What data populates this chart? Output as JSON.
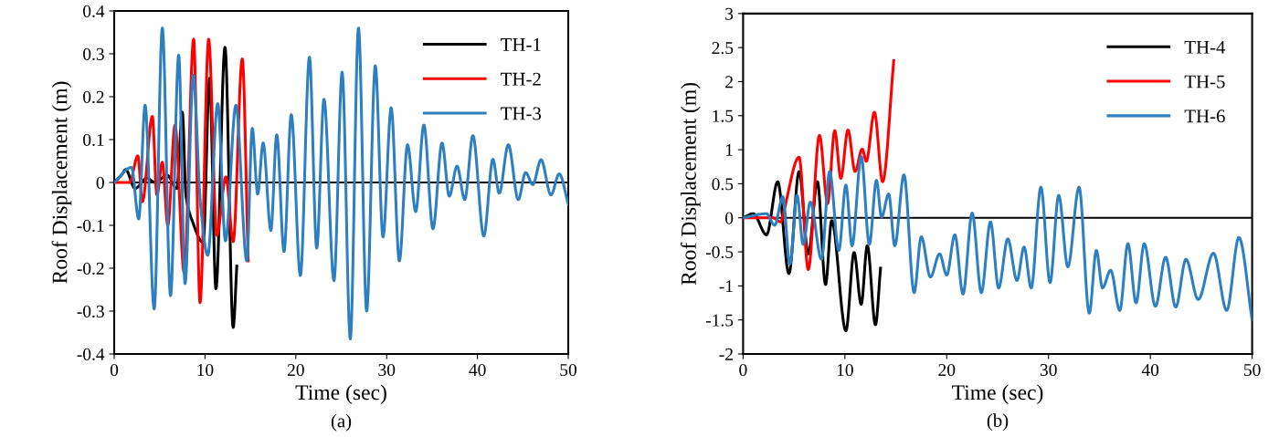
{
  "chart_data": [
    {
      "type": "line",
      "xlabel": "Time (sec)",
      "ylabel": "Roof Displacement (m)",
      "xlim": [
        0,
        50
      ],
      "ylim": [
        -0.4,
        0.4
      ],
      "xticks": [
        0,
        10,
        20,
        30,
        40,
        50
      ],
      "yticks": [
        -0.4,
        -0.3,
        -0.2,
        -0.1,
        0,
        0.1,
        0.2,
        0.3,
        0.4
      ],
      "grid": false,
      "legend": "top right",
      "line_style": "solid",
      "marker": "none",
      "annotations": [
        "(a)"
      ],
      "ref_lines": [
        {
          "axis": "y",
          "value": 0,
          "color": "#000000"
        }
      ],
      "series": [
        {
          "name": "TH-1",
          "color": "#000000",
          "x": [
            0,
            0.9,
            1.25,
            2.3,
            3.6,
            4.5,
            5.8,
            6.9,
            7.5,
            7.9,
            8.6,
            9.8,
            10.5,
            11.2,
            12.2,
            13.1,
            13.5
          ],
          "values": [
            0,
            0.02,
            0.03,
            -0.014,
            0.01,
            0,
            0.017,
            -0.014,
            0.164,
            -0.03,
            -0.09,
            -0.14,
            0.243,
            -0.248,
            0.315,
            -0.338,
            -0.195
          ]
        },
        {
          "name": "TH-2",
          "color": "#ff0000",
          "x": [
            0,
            1.7,
            2.6,
            3.1,
            4.2,
            4.7,
            5.3,
            5.9,
            6.7,
            7.7,
            8.75,
            9.45,
            10.4,
            11.3,
            12.3,
            13.1,
            14.1,
            14.75
          ],
          "values": [
            0,
            0,
            0.062,
            -0.045,
            0.154,
            -0.029,
            0.047,
            -0.1,
            0.134,
            -0.21,
            0.334,
            -0.28,
            0.334,
            -0.123,
            0.013,
            -0.138,
            0.288,
            -0.183
          ]
        },
        {
          "name": "TH-3",
          "color": "#2e7fc0",
          "x": [
            0,
            1.9,
            2.7,
            3.4,
            4.4,
            5.3,
            6.2,
            7.1,
            7.8,
            8.7,
            9.5,
            10.3,
            11.4,
            12.25,
            13.4,
            14.6,
            15.2,
            15.8,
            16.4,
            17.25,
            17.9,
            18.7,
            19.5,
            20.5,
            21.5,
            22.3,
            23.1,
            24.2,
            25.1,
            26.0,
            26.9,
            27.8,
            28.75,
            29.6,
            30.5,
            31.4,
            32.3,
            33.2,
            34.1,
            35.1,
            36.1,
            36.9,
            37.75,
            38.6,
            39.5,
            40.7,
            41.7,
            42.4,
            43.4,
            44.5,
            45.3,
            46.1,
            47.0,
            48.1,
            49.0,
            50
          ],
          "values": [
            0,
            0.035,
            -0.085,
            0.18,
            -0.295,
            0.36,
            -0.264,
            0.297,
            -0.236,
            0.25,
            -0.05,
            -0.17,
            0.184,
            -0.136,
            0.18,
            -0.183,
            0.126,
            -0.027,
            0.092,
            -0.112,
            0.111,
            -0.161,
            0.158,
            -0.217,
            0.292,
            -0.153,
            0.194,
            -0.229,
            0.257,
            -0.365,
            0.36,
            -0.3,
            0.272,
            -0.127,
            0.174,
            -0.183,
            0.088,
            -0.068,
            0.134,
            -0.108,
            0.092,
            -0.032,
            0.038,
            -0.04,
            0.109,
            -0.125,
            0.054,
            -0.025,
            0.088,
            -0.04,
            0.023,
            -0.005,
            0.053,
            -0.029,
            0.02,
            -0.05
          ]
        }
      ]
    },
    {
      "type": "line",
      "xlabel": "Time (sec)",
      "ylabel": "Roof Displacement (m)",
      "xlim": [
        0,
        50
      ],
      "ylim": [
        -2,
        3
      ],
      "xticks": [
        0,
        10,
        20,
        30,
        40,
        50
      ],
      "yticks": [
        -2,
        -1.5,
        -1,
        -0.5,
        0,
        0.5,
        1,
        1.5,
        2,
        2.5,
        3
      ],
      "grid": false,
      "legend": "top right",
      "line_style": "solid",
      "marker": "none",
      "annotations": [
        "(b)"
      ],
      "ref_lines": [
        {
          "axis": "y",
          "value": 0,
          "color": "#000000"
        }
      ],
      "series": [
        {
          "name": "TH-4",
          "color": "#000000",
          "x": [
            0,
            1.0,
            2.3,
            3.4,
            4.5,
            5.5,
            6.4,
            7.3,
            8.1,
            8.7,
            10.1,
            10.9,
            11.6,
            12.2,
            13.0,
            13.5
          ],
          "values": [
            0,
            0.06,
            -0.25,
            0.53,
            -0.82,
            0.68,
            -0.53,
            0.53,
            -0.98,
            -0.04,
            -1.66,
            -0.51,
            -1.27,
            -0.41,
            -1.57,
            -0.74
          ]
        },
        {
          "name": "TH-5",
          "color": "#ff0000",
          "x": [
            0,
            2.9,
            3.7,
            4.0,
            5.5,
            6.4,
            7.5,
            8.3,
            9.0,
            9.6,
            10.3,
            11.0,
            11.7,
            12.1,
            12.9,
            13.7,
            14.8
          ],
          "values": [
            0,
            0,
            -0.06,
            0.1,
            0.89,
            -0.76,
            1.21,
            0.21,
            1.28,
            0.58,
            1.29,
            0.68,
            1.01,
            0.83,
            1.55,
            0.53,
            2.31
          ]
        },
        {
          "name": "TH-6",
          "color": "#2e7fc0",
          "x": [
            0,
            2.3,
            3.1,
            3.9,
            4.6,
            5.3,
            5.9,
            6.6,
            7.7,
            8.5,
            9.4,
            10.1,
            10.7,
            11.6,
            12.4,
            13.1,
            13.6,
            14.3,
            14.9,
            15.8,
            16.8,
            17.5,
            18.4,
            19.3,
            20.0,
            20.8,
            21.6,
            22.5,
            23.4,
            24.3,
            25.1,
            26.0,
            26.9,
            27.6,
            28.3,
            29.25,
            30.15,
            31.0,
            31.9,
            33.0,
            34.0,
            34.7,
            35.3,
            36.1,
            37.0,
            37.8,
            38.6,
            39.4,
            40.5,
            41.5,
            42.5,
            43.5,
            44.7,
            46.2,
            47.5,
            48.7,
            50
          ],
          "values": [
            0,
            0.06,
            -0.11,
            0.31,
            -0.68,
            0.33,
            -0.39,
            0.23,
            -0.61,
            0.68,
            -0.48,
            0.48,
            -0.41,
            0.9,
            -0.39,
            0.55,
            0.01,
            0.35,
            -0.41,
            0.63,
            -1.1,
            -0.28,
            -0.87,
            -0.53,
            -0.84,
            -0.25,
            -1.12,
            0.07,
            -1.1,
            -0.06,
            -1.03,
            -0.31,
            -0.92,
            -0.43,
            -1.03,
            0.45,
            -0.95,
            0.33,
            -0.72,
            0.45,
            -1.4,
            -0.48,
            -1.03,
            -0.77,
            -1.36,
            -0.38,
            -1.25,
            -0.38,
            -1.3,
            -0.58,
            -1.31,
            -0.61,
            -1.2,
            -0.52,
            -1.36,
            -0.29,
            -1.5
          ]
        }
      ]
    }
  ]
}
